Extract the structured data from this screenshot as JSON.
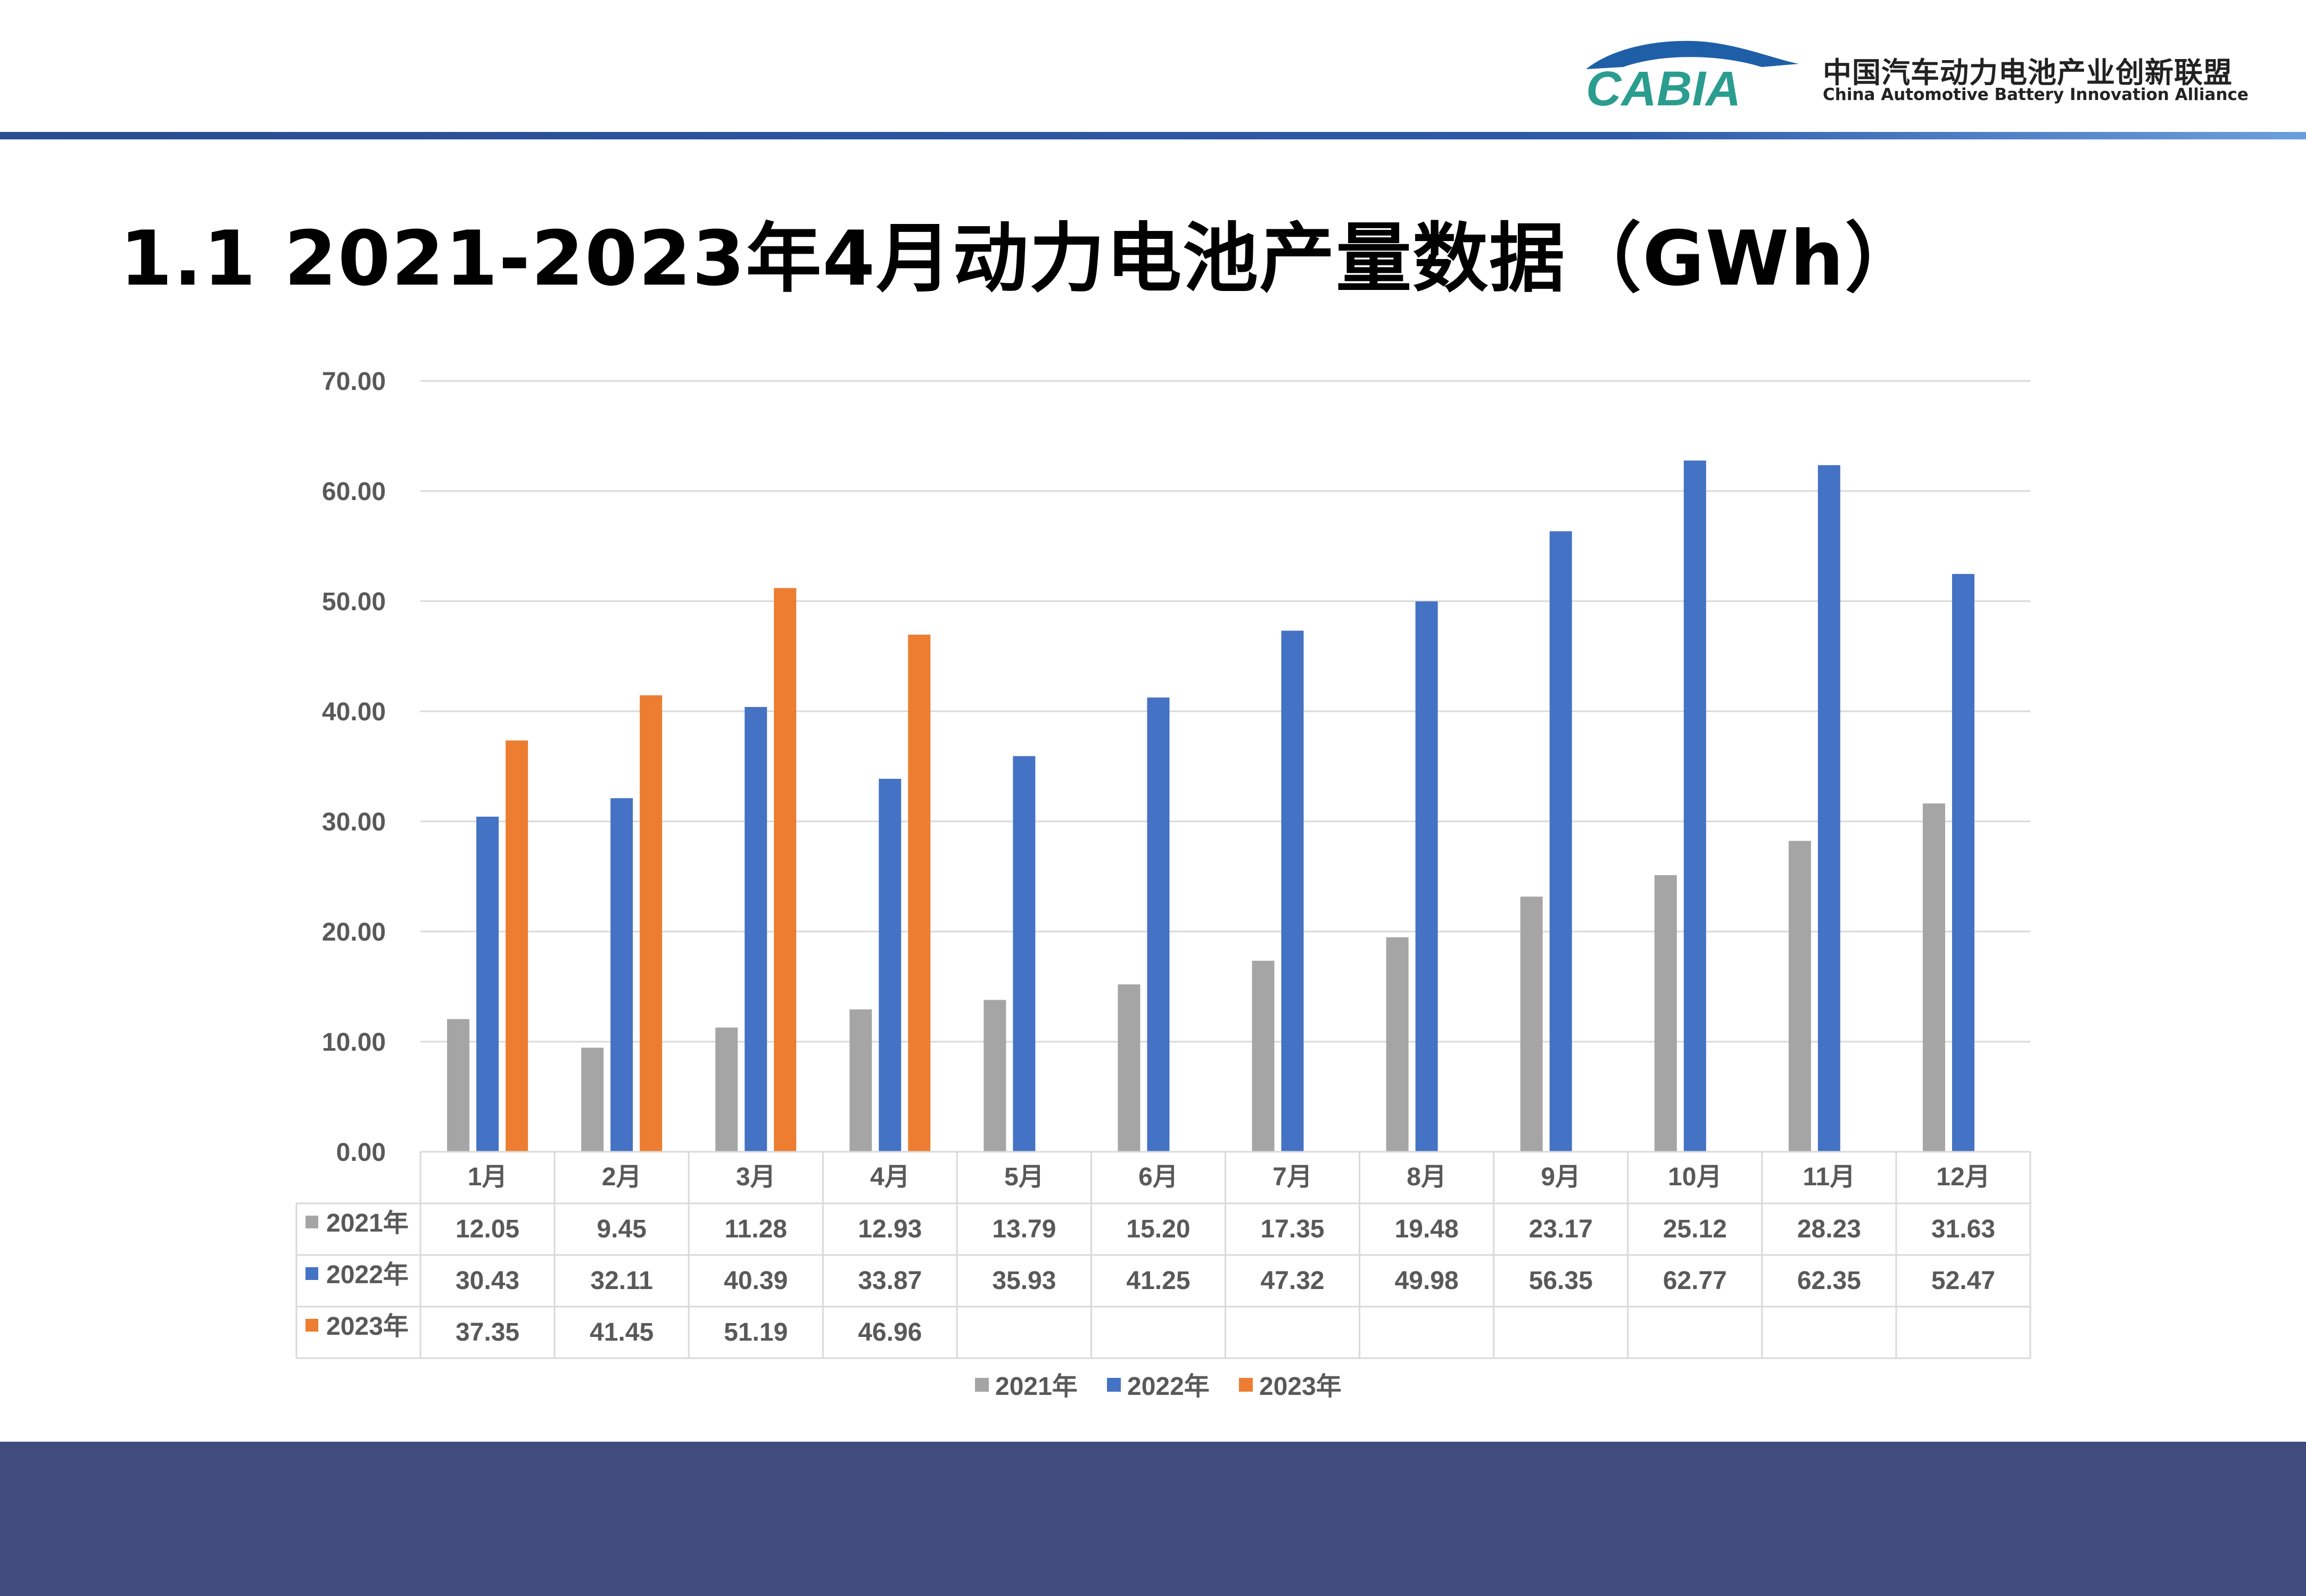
{
  "slide": {
    "title": "1.1 2021-2023年4月动力电池产量数据（GWh）"
  },
  "logo": {
    "mark_text": "CABIA",
    "name_cn": "中国汽车动力电池产业创新联盟",
    "name_en": "China Automotive Battery Innovation Alliance"
  },
  "colors": {
    "header_rule": "#2f5aa8",
    "footer_band": "#414b7e",
    "series_2021": "#a5a5a5",
    "series_2022": "#4472c4",
    "series_2023": "#ed7d31"
  },
  "chart_data": {
    "type": "bar",
    "title": "",
    "xlabel": "",
    "ylabel": "",
    "ylim": [
      0,
      70
    ],
    "yticks": [
      0,
      10,
      20,
      30,
      40,
      50,
      60,
      70
    ],
    "ytick_labels": [
      "0.00",
      "10.00",
      "20.00",
      "30.00",
      "40.00",
      "50.00",
      "60.00",
      "70.00"
    ],
    "grid": true,
    "legend": "bottom",
    "data_table": true,
    "categories": [
      "1月",
      "2月",
      "3月",
      "4月",
      "5月",
      "6月",
      "7月",
      "8月",
      "9月",
      "10月",
      "11月",
      "12月"
    ],
    "series": [
      {
        "name": "2021年",
        "color": "#a5a5a5",
        "values": [
          12.05,
          9.45,
          11.28,
          12.93,
          13.79,
          15.2,
          17.35,
          19.48,
          23.17,
          25.12,
          28.23,
          31.63
        ],
        "labels": [
          "12.05",
          "9.45",
          "11.28",
          "12.93",
          "13.79",
          "15.20",
          "17.35",
          "19.48",
          "23.17",
          "25.12",
          "28.23",
          "31.63"
        ]
      },
      {
        "name": "2022年",
        "color": "#4472c4",
        "values": [
          30.43,
          32.11,
          40.39,
          33.87,
          35.93,
          41.25,
          47.32,
          49.98,
          56.35,
          62.77,
          62.35,
          52.47
        ],
        "labels": [
          "30.43",
          "32.11",
          "40.39",
          "33.87",
          "35.93",
          "41.25",
          "47.32",
          "49.98",
          "56.35",
          "62.77",
          "62.35",
          "52.47"
        ]
      },
      {
        "name": "2023年",
        "color": "#ed7d31",
        "values": [
          37.35,
          41.45,
          51.19,
          46.96,
          null,
          null,
          null,
          null,
          null,
          null,
          null,
          null
        ],
        "labels": [
          "37.35",
          "41.45",
          "51.19",
          "46.96",
          "",
          "",
          "",
          "",
          "",
          "",
          "",
          ""
        ]
      }
    ]
  }
}
